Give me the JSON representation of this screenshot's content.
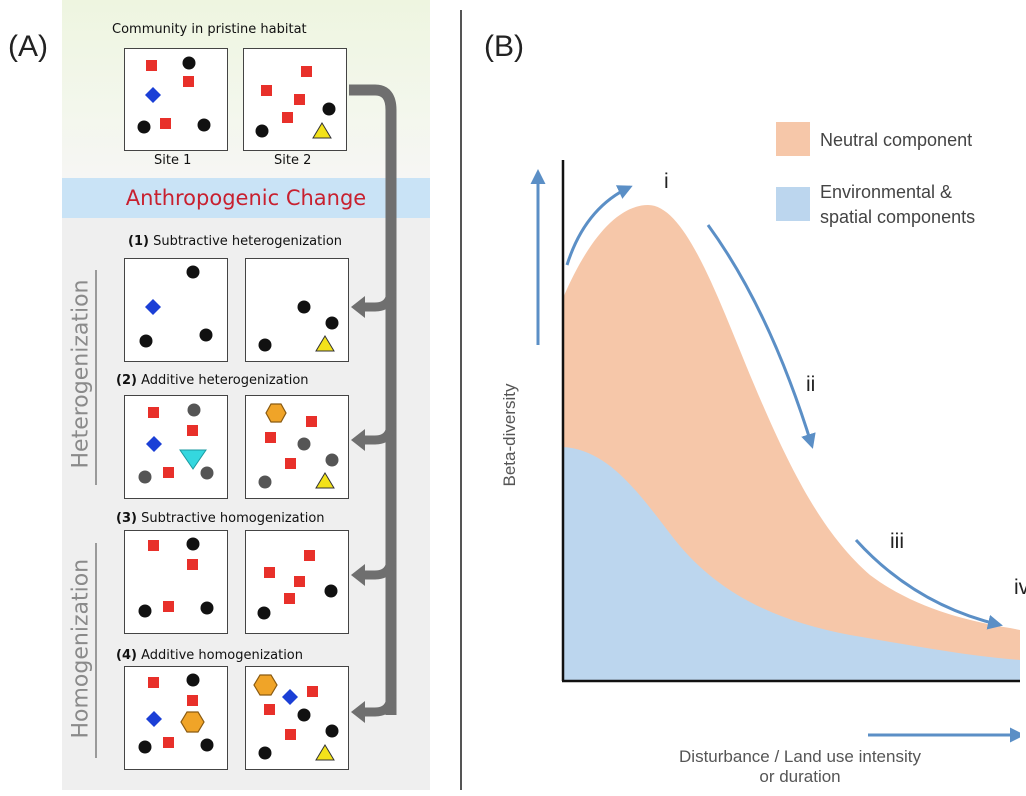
{
  "panel_a": {
    "label": "(A)",
    "pristine_title": "Community in pristine habitat",
    "site1": "Site 1",
    "site2": "Site 2",
    "anthro_change": "Anthropogenic Change",
    "heterogenization_label": "Heterogenization",
    "homogenization_label": "Homogenization",
    "rows": [
      {
        "num": "(1)",
        "title": "Subtractive heterogenization"
      },
      {
        "num": "(2)",
        "title": "Additive heterogenization"
      },
      {
        "num": "(3)",
        "title": "Subtractive homogenization"
      },
      {
        "num": "(4)",
        "title": "Additive homogenization"
      }
    ]
  },
  "panel_b": {
    "label": "(B)",
    "legend": {
      "neutral": "Neutral component",
      "env_line1": "Environmental &",
      "env_line2": "spatial components"
    },
    "ylabel": "Beta-diversity",
    "xlabel_line1": "Disturbance / Land use intensity",
    "xlabel_line2": "or duration",
    "stages": [
      "i",
      "ii",
      "iii",
      "iv"
    ]
  },
  "colors": {
    "neutral": "#f6c7a9",
    "environmental": "#bcd6ee",
    "arrow_blue": "#5b8fc6",
    "red_species": "#e8302a",
    "blue_species": "#1b3fd6",
    "yellow_species": "#f3e21a",
    "orange_species": "#f0a428",
    "cyan_species": "#34d7df"
  }
}
